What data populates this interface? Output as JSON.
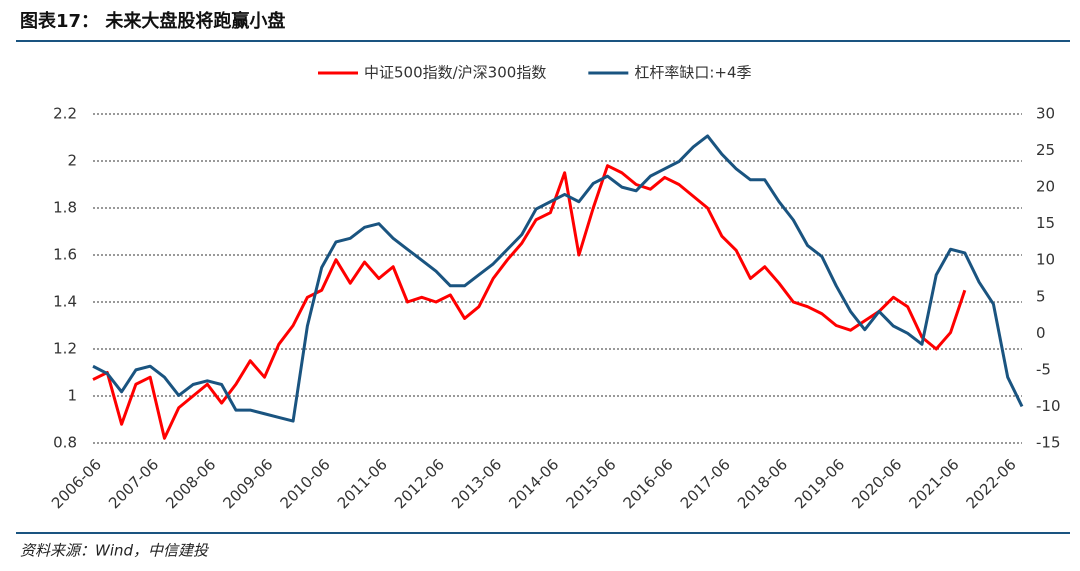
{
  "chart_data": {
    "type": "line",
    "title": "图表17： 未来大盘股将跑赢小盘",
    "source": "资料来源：Wind，中信建投",
    "x": [
      "2006-06",
      "2006-09",
      "2006-12",
      "2007-03",
      "2007-06",
      "2007-09",
      "2007-12",
      "2008-03",
      "2008-06",
      "2008-09",
      "2008-12",
      "2009-03",
      "2009-06",
      "2009-09",
      "2009-12",
      "2010-03",
      "2010-06",
      "2010-09",
      "2010-12",
      "2011-03",
      "2011-06",
      "2011-09",
      "2011-12",
      "2012-03",
      "2012-06",
      "2012-09",
      "2012-12",
      "2013-03",
      "2013-06",
      "2013-09",
      "2013-12",
      "2014-03",
      "2014-06",
      "2014-09",
      "2014-12",
      "2015-03",
      "2015-06",
      "2015-09",
      "2015-12",
      "2016-03",
      "2016-06",
      "2016-09",
      "2016-12",
      "2017-03",
      "2017-06",
      "2017-09",
      "2017-12",
      "2018-03",
      "2018-06",
      "2018-09",
      "2018-12",
      "2019-03",
      "2019-06",
      "2019-09",
      "2019-12",
      "2020-03",
      "2020-06",
      "2020-09",
      "2020-12",
      "2021-03",
      "2021-06",
      "2021-09",
      "2021-12",
      "2022-03",
      "2022-06",
      "2022-09"
    ],
    "xticks": [
      "2006-06",
      "2007-06",
      "2008-06",
      "2009-06",
      "2010-06",
      "2011-06",
      "2012-06",
      "2013-06",
      "2014-06",
      "2015-06",
      "2016-06",
      "2017-06",
      "2018-06",
      "2019-06",
      "2020-06",
      "2021-06",
      "2022-06"
    ],
    "series": [
      {
        "name": "中证500指数/沪深300指数",
        "color": "#ff0000",
        "values": [
          1.07,
          1.1,
          0.88,
          1.05,
          1.08,
          0.82,
          0.95,
          1.0,
          1.05,
          0.97,
          1.05,
          1.15,
          1.08,
          1.22,
          1.3,
          1.42,
          1.45,
          1.58,
          1.48,
          1.57,
          1.5,
          1.55,
          1.4,
          1.42,
          1.4,
          1.43,
          1.33,
          1.38,
          1.5,
          1.58,
          1.65,
          1.75,
          1.78,
          1.95,
          1.6,
          1.8,
          1.98,
          1.95,
          1.9,
          1.88,
          1.93,
          1.9,
          1.85,
          1.8,
          1.68,
          1.62,
          1.5,
          1.55,
          1.48,
          1.4,
          1.38,
          1.35,
          1.3,
          1.28,
          1.32,
          1.36,
          1.42,
          1.38,
          1.25,
          1.2,
          1.27,
          1.45,
          null,
          null,
          null,
          null
        ]
      },
      {
        "name": "杠杆率缺口:+4季",
        "color": "#1a5480",
        "axis": "y2",
        "values": [
          -4.5,
          -5.5,
          -8,
          -5,
          -4.5,
          -6,
          -8.5,
          -7,
          -6.5,
          -7,
          -10.5,
          -10.5,
          -11,
          -11.5,
          -12,
          1,
          9,
          12.5,
          13,
          14.5,
          15,
          13,
          11.5,
          10,
          8.5,
          6.5,
          6.5,
          8,
          9.5,
          11.5,
          13.5,
          17,
          18,
          19,
          18,
          20.5,
          21.5,
          20,
          19.5,
          21.5,
          22.5,
          23.5,
          25.5,
          27,
          24.5,
          22.5,
          21,
          21,
          18,
          15.5,
          12,
          10.5,
          6.5,
          3,
          0.5,
          3,
          1,
          0,
          -1.5,
          8,
          11.5,
          11,
          7,
          4,
          -6,
          -10
        ]
      }
    ],
    "ylim": [
      0.8,
      2.2
    ],
    "yticks": [
      0.8,
      1,
      1.2,
      1.4,
      1.6,
      1.8,
      2,
      2.2
    ],
    "y2lim": [
      -15,
      30
    ],
    "y2ticks": [
      -15,
      -10,
      -5,
      0,
      5,
      10,
      15,
      20,
      25,
      30
    ],
    "grid": true
  }
}
